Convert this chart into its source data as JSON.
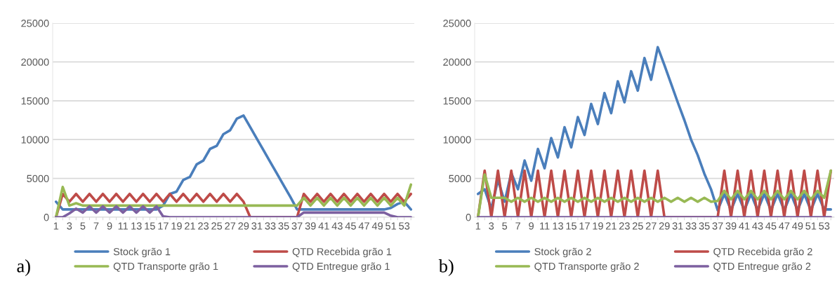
{
  "chart_data": [
    {
      "type": "line",
      "categories": [
        "1",
        null,
        "3",
        null,
        "5",
        null,
        "7",
        null,
        "9",
        null,
        "11",
        null,
        "13",
        null,
        "15",
        null,
        "17",
        null,
        "19",
        null,
        "21",
        null,
        "23",
        null,
        "25",
        null,
        "27",
        null,
        "29",
        null,
        "31",
        null,
        "33",
        null,
        "35",
        null,
        "37",
        null,
        "39",
        null,
        "41",
        null,
        "43",
        null,
        "45",
        null,
        "47",
        null,
        "49",
        null,
        "51",
        null,
        "53",
        null
      ],
      "series": [
        {
          "name": "Stock grão 1",
          "color": "#4a7ebb",
          "values": [
            2000,
            1000,
            1000,
            1000,
            1000,
            1000,
            1000,
            1000,
            1000,
            1000,
            1000,
            1000,
            1000,
            1000,
            1000,
            1000,
            1500,
            3000,
            3300,
            4800,
            5200,
            6800,
            7300,
            8800,
            9200,
            10700,
            11200,
            12700,
            13100,
            11600,
            10100,
            8600,
            7100,
            5600,
            4100,
            2600,
            1000,
            1000,
            1000,
            1000,
            1000,
            1000,
            1000,
            1000,
            1000,
            1000,
            1000,
            1000,
            1000,
            1000,
            1200,
            1700,
            2000,
            1000
          ]
        },
        {
          "name": "QTD Recebida grão 1",
          "color": "#be4b48",
          "values": [
            0,
            3000,
            2000,
            3000,
            2000,
            3000,
            2000,
            3000,
            2000,
            3000,
            2000,
            3000,
            2000,
            3000,
            2000,
            3000,
            2000,
            3000,
            2000,
            3000,
            2000,
            3000,
            2000,
            3000,
            2000,
            3000,
            2000,
            3000,
            2000,
            0,
            0,
            0,
            0,
            0,
            0,
            0,
            0,
            3000,
            2000,
            3000,
            2000,
            3000,
            2000,
            3000,
            2000,
            3000,
            2000,
            3000,
            2000,
            3000,
            2000,
            3000,
            2000,
            3000
          ]
        },
        {
          "name": "QTD Transporte grão 1",
          "color": "#98b954",
          "values": [
            0,
            3900,
            1500,
            1800,
            1500,
            1500,
            1500,
            1500,
            1500,
            1500,
            1500,
            1500,
            1500,
            1500,
            1500,
            1500,
            1500,
            1500,
            1500,
            1500,
            1500,
            1500,
            1500,
            1500,
            1500,
            1500,
            1500,
            1500,
            1500,
            1500,
            1500,
            1500,
            1500,
            1500,
            1500,
            1500,
            1500,
            2500,
            1500,
            2500,
            1500,
            2500,
            1500,
            2500,
            1500,
            2500,
            1500,
            2500,
            1500,
            2500,
            1500,
            2500,
            1500,
            4200
          ]
        },
        {
          "name": "QTD Entregue grão 1",
          "color": "#7d60a0",
          "values": [
            0,
            0,
            500,
            1100,
            600,
            1400,
            600,
            1400,
            600,
            1400,
            600,
            1400,
            600,
            1400,
            600,
            1400,
            100,
            0,
            0,
            0,
            0,
            0,
            0,
            0,
            0,
            0,
            0,
            0,
            0,
            0,
            0,
            0,
            0,
            0,
            0,
            0,
            0,
            600,
            600,
            600,
            600,
            600,
            600,
            600,
            600,
            600,
            600,
            600,
            600,
            600,
            200,
            0,
            0,
            0
          ]
        }
      ],
      "ylim": [
        0,
        25000
      ],
      "yticks": [
        0,
        5000,
        10000,
        15000,
        20000,
        25000
      ],
      "grid": "y",
      "legend": "bottom",
      "annotations": [
        "a)"
      ]
    },
    {
      "type": "line",
      "categories": [
        "1",
        null,
        "3",
        null,
        "5",
        null,
        "7",
        null,
        "9",
        null,
        "11",
        null,
        "13",
        null,
        "15",
        null,
        "17",
        null,
        "19",
        null,
        "21",
        null,
        "23",
        null,
        "25",
        null,
        "27",
        null,
        "29",
        null,
        "31",
        null,
        "33",
        null,
        "35",
        null,
        "37",
        null,
        "39",
        null,
        "41",
        null,
        "43",
        null,
        "45",
        null,
        "47",
        null,
        "49",
        null,
        "51",
        null,
        "53",
        null
      ],
      "series": [
        {
          "name": "Stock grão 2",
          "color": "#4a7ebb",
          "values": [
            3000,
            3600,
            1100,
            4800,
            2000,
            5700,
            3600,
            7300,
            4700,
            8800,
            6300,
            10200,
            7700,
            11600,
            9000,
            12900,
            10600,
            14600,
            12000,
            16000,
            13400,
            17500,
            14800,
            18800,
            16300,
            20500,
            17700,
            21900,
            19600,
            17200,
            14800,
            12500,
            10000,
            8000,
            5600,
            3600,
            900,
            3000,
            900,
            3000,
            900,
            3000,
            900,
            3000,
            900,
            3000,
            900,
            3000,
            900,
            3000,
            900,
            3000,
            1000,
            1000
          ]
        },
        {
          "name": "QTD Recebida grão 2",
          "color": "#be4b48",
          "values": [
            0,
            6000,
            0,
            6000,
            0,
            6000,
            0,
            6000,
            0,
            6000,
            0,
            6000,
            0,
            6000,
            0,
            6000,
            0,
            6000,
            0,
            6000,
            0,
            6000,
            0,
            6000,
            0,
            6000,
            0,
            6000,
            0,
            0,
            0,
            0,
            0,
            0,
            0,
            0,
            0,
            6000,
            0,
            6000,
            0,
            6000,
            0,
            6000,
            0,
            6000,
            0,
            6000,
            0,
            6000,
            0,
            6000,
            0,
            6000
          ]
        },
        {
          "name": "QTD Transporte grão 2",
          "color": "#98b954",
          "values": [
            0,
            5500,
            2500,
            2500,
            2500,
            2000,
            2500,
            2000,
            2500,
            2000,
            2500,
            2000,
            2500,
            2000,
            2500,
            2000,
            2500,
            2000,
            2500,
            2000,
            2500,
            2000,
            2500,
            2000,
            2500,
            2000,
            2500,
            2000,
            2500,
            2000,
            2500,
            2000,
            2500,
            2000,
            2500,
            2000,
            2100,
            3400,
            2300,
            3400,
            2300,
            3400,
            2300,
            3400,
            2300,
            3400,
            2300,
            3400,
            2300,
            3400,
            2300,
            3400,
            2500,
            6000
          ]
        },
        {
          "name": "QTD Entregue grão 2",
          "color": "#7d60a0",
          "values": [
            0,
            0,
            0,
            0,
            0,
            0,
            0,
            0,
            0,
            0,
            0,
            0,
            0,
            0,
            0,
            0,
            0,
            0,
            0,
            0,
            0,
            0,
            0,
            0,
            0,
            0,
            0,
            0,
            0,
            0,
            0,
            0,
            0,
            0,
            0,
            0,
            0,
            0,
            0,
            0,
            0,
            0,
            0,
            0,
            0,
            0,
            0,
            0,
            0,
            0,
            0,
            0,
            0,
            0
          ]
        }
      ],
      "ylim": [
        0,
        25000
      ],
      "yticks": [
        0,
        5000,
        10000,
        15000,
        20000,
        25000
      ],
      "grid": "y",
      "legend": "bottom",
      "annotations": [
        "b)"
      ]
    }
  ]
}
